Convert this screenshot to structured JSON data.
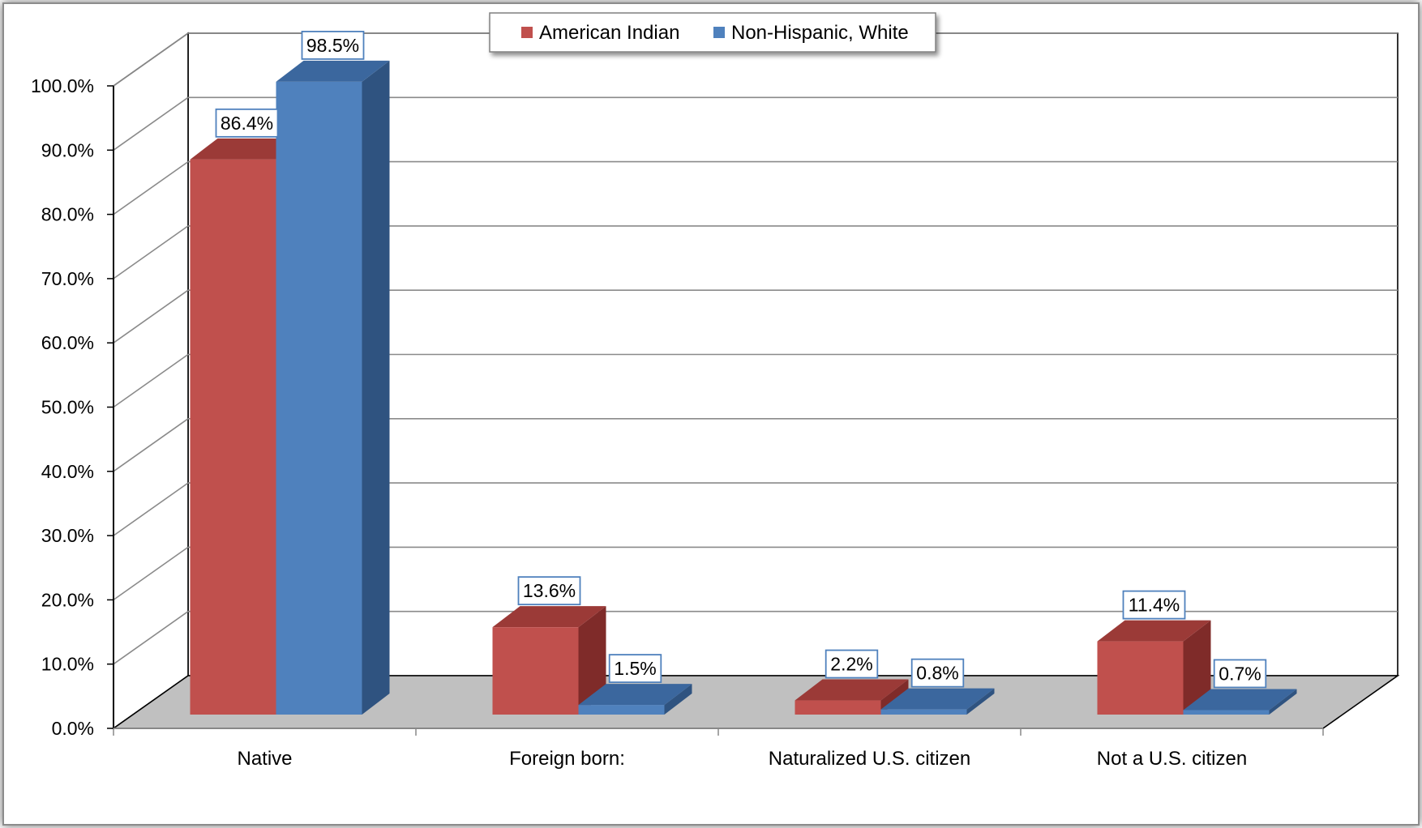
{
  "chart_data": {
    "type": "bar",
    "categories": [
      "Native",
      "Foreign born:",
      "Naturalized U.S. citizen",
      "Not a U.S. citizen"
    ],
    "series": [
      {
        "name": "American Indian",
        "values": [
          86.4,
          13.6,
          2.2,
          11.4
        ],
        "labels": [
          "86.4%",
          "13.6%",
          "2.2%",
          "11.4%"
        ],
        "color": "#c0504d",
        "side_color": "#7f2b29",
        "top_color": "#9b3a37"
      },
      {
        "name": "Non-Hispanic, White",
        "values": [
          98.5,
          1.5,
          0.8,
          0.7
        ],
        "labels": [
          "98.5%",
          "1.5%",
          "0.8%",
          "0.7%"
        ],
        "color": "#4f81bd",
        "side_color": "#2f5380",
        "top_color": "#3b679e"
      }
    ],
    "yticks": [
      "0.0%",
      "10.0%",
      "20.0%",
      "30.0%",
      "40.0%",
      "50.0%",
      "60.0%",
      "70.0%",
      "80.0%",
      "90.0%",
      "100.0%"
    ],
    "ylim": [
      0,
      100
    ],
    "grid": true,
    "style": "3d-clustered-column",
    "legend_position": "top",
    "floor_color": "#c0c0c0"
  }
}
